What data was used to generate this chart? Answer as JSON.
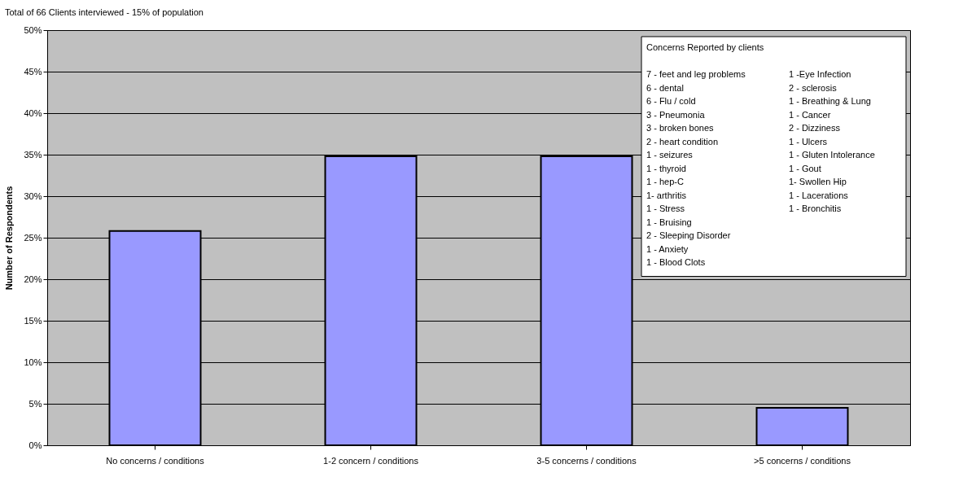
{
  "chart_data": {
    "type": "bar",
    "title": "Total of 66 Clients interviewed - 15% of population",
    "ylabel": "Number of Respondents",
    "categories": [
      "No concerns / conditions",
      "1-2 concern / conditions",
      "3-5 concerns / conditions",
      ">5 concerns / conditions"
    ],
    "values": [
      25.8,
      34.8,
      34.8,
      4.5
    ],
    "color": "#9999ff",
    "ylim": [
      0,
      50
    ],
    "yticks": [
      {
        "value": 0,
        "label": "0%"
      },
      {
        "value": 5,
        "label": "5%"
      },
      {
        "value": 10,
        "label": "10%"
      },
      {
        "value": 15,
        "label": "15%"
      },
      {
        "value": 20,
        "label": "20%"
      },
      {
        "value": 25,
        "label": "25%"
      },
      {
        "value": 30,
        "label": "30%"
      },
      {
        "value": 35,
        "label": "35%"
      },
      {
        "value": 40,
        "label": "40%"
      },
      {
        "value": 45,
        "label": "45%"
      },
      {
        "value": 50,
        "label": "50%"
      }
    ],
    "grid": "y",
    "annotations": [
      "Concerns Reported by clients",
      "7 - feet and leg problems",
      "6 - dental",
      "6 - Flu / cold",
      "3 - Pneumonia",
      "3 - broken bones",
      "2 - heart condition",
      "1 - seizures",
      "1 - thyroid",
      "1 -  hep-C",
      "1- arthritis",
      "1 - Stress",
      "1 - Bruising",
      "2 - Sleeping Disorder",
      "1 - Anxiety",
      "1 - Blood Clots",
      "1 -Eye Infection",
      "2 - sclerosis",
      "1 - Breathing & Lung",
      "1 - Cancer",
      "2 - Dizziness",
      "1 - Ulcers",
      "1 - Gluten Intolerance",
      "1 - Gout",
      "1- Swollen Hip",
      "1 - Lacerations",
      "1 - Bronchitis"
    ]
  }
}
